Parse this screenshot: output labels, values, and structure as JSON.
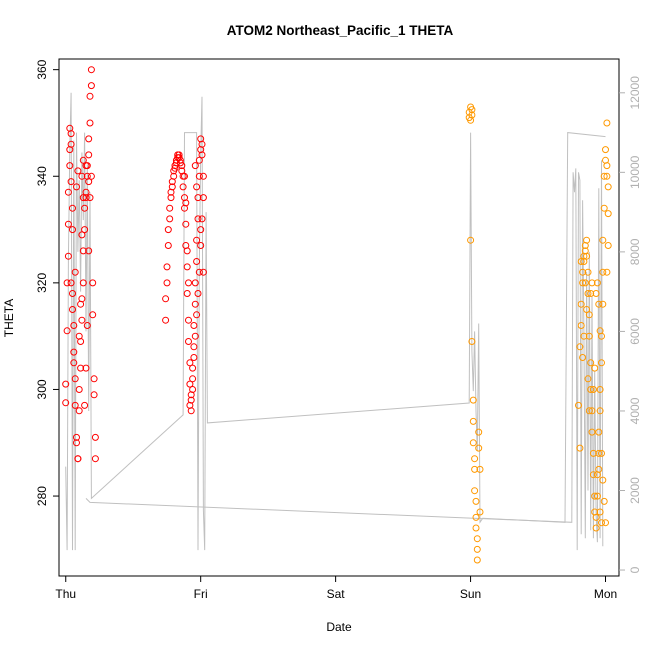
{
  "chart_data": {
    "type": "scatter",
    "title": "ATOM2 Northeast_Pacific_1 THETA",
    "xlabel": "Date",
    "ylabel": "THETA",
    "x_ticks": [
      "Thu",
      "Fri",
      "Sat",
      "Sun",
      "Mon"
    ],
    "x_range": [
      -0.05,
      4.1
    ],
    "ylim": [
      265,
      362
    ],
    "y_ticks": [
      280,
      300,
      320,
      340,
      360
    ],
    "y2lim": [
      -150,
      12850
    ],
    "y2_ticks": [
      0,
      2000,
      4000,
      6000,
      8000,
      10000,
      12000
    ],
    "colors": {
      "series1": "#ff0000",
      "series2": "#ff9900",
      "line": "#c0c0c0",
      "axis": "#000000",
      "right_axis": "#b0b0b0"
    },
    "series": [
      {
        "color": "#ff0000",
        "points": [
          [
            0.0,
            297.5
          ],
          [
            0.0,
            301
          ],
          [
            0.01,
            311
          ],
          [
            0.01,
            320
          ],
          [
            0.02,
            325
          ],
          [
            0.02,
            331
          ],
          [
            0.02,
            337
          ],
          [
            0.03,
            342
          ],
          [
            0.03,
            345
          ],
          [
            0.03,
            349
          ],
          [
            0.04,
            348
          ],
          [
            0.04,
            346
          ],
          [
            0.04,
            339
          ],
          [
            0.05,
            334
          ],
          [
            0.05,
            330
          ],
          [
            0.05,
            318
          ],
          [
            0.06,
            312
          ],
          [
            0.06,
            307
          ],
          [
            0.07,
            302
          ],
          [
            0.07,
            297
          ],
          [
            0.08,
            291
          ],
          [
            0.08,
            290
          ],
          [
            0.09,
            287
          ],
          [
            0.09,
            287
          ],
          [
            0.1,
            296
          ],
          [
            0.1,
            300
          ],
          [
            0.11,
            304
          ],
          [
            0.11,
            309
          ],
          [
            0.12,
            313
          ],
          [
            0.12,
            317
          ],
          [
            0.13,
            320
          ],
          [
            0.13,
            326
          ],
          [
            0.14,
            330
          ],
          [
            0.14,
            334
          ],
          [
            0.15,
            336
          ],
          [
            0.15,
            337
          ],
          [
            0.16,
            340
          ],
          [
            0.16,
            342
          ],
          [
            0.17,
            344
          ],
          [
            0.17,
            347
          ],
          [
            0.18,
            350
          ],
          [
            0.18,
            355
          ],
          [
            0.19,
            357
          ],
          [
            0.19,
            360
          ],
          [
            0.19,
            340
          ],
          [
            0.18,
            336
          ],
          [
            0.17,
            326
          ],
          [
            0.16,
            312
          ],
          [
            0.15,
            304
          ],
          [
            0.14,
            297
          ],
          [
            0.13,
            336
          ],
          [
            0.12,
            329
          ],
          [
            0.11,
            316
          ],
          [
            0.1,
            310
          ],
          [
            0.09,
            341
          ],
          [
            0.08,
            338
          ],
          [
            0.07,
            322
          ],
          [
            0.06,
            305
          ],
          [
            0.2,
            320
          ],
          [
            0.2,
            314
          ],
          [
            0.21,
            302
          ],
          [
            0.21,
            299
          ],
          [
            0.22,
            291
          ],
          [
            0.22,
            287
          ],
          [
            0.05,
            315
          ],
          [
            0.04,
            320
          ],
          [
            0.13,
            343
          ],
          [
            0.15,
            342
          ],
          [
            0.17,
            339
          ],
          [
            0.12,
            340
          ],
          [
            0.74,
            313
          ],
          [
            0.74,
            317
          ],
          [
            0.75,
            320
          ],
          [
            0.75,
            323
          ],
          [
            0.76,
            327
          ],
          [
            0.76,
            330
          ],
          [
            0.77,
            332
          ],
          [
            0.77,
            334
          ],
          [
            0.78,
            336
          ],
          [
            0.78,
            337
          ],
          [
            0.79,
            338
          ],
          [
            0.79,
            339
          ],
          [
            0.8,
            340
          ],
          [
            0.8,
            341
          ],
          [
            0.81,
            341.5
          ],
          [
            0.81,
            342
          ],
          [
            0.82,
            342.5
          ],
          [
            0.82,
            343
          ],
          [
            0.83,
            343.5
          ],
          [
            0.83,
            344
          ],
          [
            0.84,
            344
          ],
          [
            0.84,
            343.5
          ],
          [
            0.85,
            343
          ],
          [
            0.85,
            342.5
          ],
          [
            0.86,
            342
          ],
          [
            0.86,
            341
          ],
          [
            0.87,
            340
          ],
          [
            0.87,
            338
          ],
          [
            0.88,
            336
          ],
          [
            0.88,
            334
          ],
          [
            0.89,
            331
          ],
          [
            0.89,
            327
          ],
          [
            0.9,
            323
          ],
          [
            0.9,
            318
          ],
          [
            0.91,
            313
          ],
          [
            0.91,
            309
          ],
          [
            0.92,
            305
          ],
          [
            0.92,
            301
          ],
          [
            0.93,
            298
          ],
          [
            0.93,
            296
          ],
          [
            0.94,
            300
          ],
          [
            0.94,
            304
          ],
          [
            0.95,
            308
          ],
          [
            0.95,
            312
          ],
          [
            0.96,
            316
          ],
          [
            0.96,
            320
          ],
          [
            0.97,
            324
          ],
          [
            0.97,
            328
          ],
          [
            0.98,
            332
          ],
          [
            0.98,
            336
          ],
          [
            0.99,
            340
          ],
          [
            0.99,
            343
          ],
          [
            1.0,
            345
          ],
          [
            1.0,
            347
          ],
          [
            1.01,
            346
          ],
          [
            1.01,
            344
          ],
          [
            1.02,
            340
          ],
          [
            1.02,
            336
          ],
          [
            1.01,
            332
          ],
          [
            1.0,
            327
          ],
          [
            0.99,
            322
          ],
          [
            0.98,
            318
          ],
          [
            0.97,
            314
          ],
          [
            0.96,
            310
          ],
          [
            0.95,
            306
          ],
          [
            0.94,
            302
          ],
          [
            0.93,
            299
          ],
          [
            0.92,
            297
          ],
          [
            0.91,
            320
          ],
          [
            0.9,
            326
          ],
          [
            0.89,
            335
          ],
          [
            0.88,
            340
          ],
          [
            1.0,
            330
          ],
          [
            1.02,
            322
          ],
          [
            0.97,
            338
          ],
          [
            0.96,
            342
          ]
        ]
      },
      {
        "color": "#ff9900",
        "points": [
          [
            2.99,
            351
          ],
          [
            2.99,
            352
          ],
          [
            3.0,
            353
          ],
          [
            3.0,
            350.5
          ],
          [
            3.01,
            352.5
          ],
          [
            3.01,
            351.5
          ],
          [
            3.0,
            328
          ],
          [
            3.01,
            309
          ],
          [
            3.02,
            298
          ],
          [
            3.02,
            294
          ],
          [
            3.02,
            290
          ],
          [
            3.03,
            287
          ],
          [
            3.03,
            285
          ],
          [
            3.03,
            281
          ],
          [
            3.04,
            279
          ],
          [
            3.04,
            276
          ],
          [
            3.04,
            274
          ],
          [
            3.05,
            272
          ],
          [
            3.05,
            270
          ],
          [
            3.05,
            268
          ],
          [
            3.06,
            292
          ],
          [
            3.06,
            289
          ],
          [
            3.07,
            285
          ],
          [
            3.07,
            277
          ],
          [
            3.8,
            297
          ],
          [
            3.81,
            289
          ],
          [
            3.81,
            308
          ],
          [
            3.82,
            312
          ],
          [
            3.82,
            316
          ],
          [
            3.83,
            320
          ],
          [
            3.83,
            322
          ],
          [
            3.84,
            324
          ],
          [
            3.84,
            325
          ],
          [
            3.85,
            326
          ],
          [
            3.85,
            327
          ],
          [
            3.86,
            328
          ],
          [
            3.86,
            325
          ],
          [
            3.87,
            322
          ],
          [
            3.87,
            318
          ],
          [
            3.88,
            314
          ],
          [
            3.88,
            310
          ],
          [
            3.89,
            305
          ],
          [
            3.89,
            300
          ],
          [
            3.9,
            296
          ],
          [
            3.9,
            292
          ],
          [
            3.91,
            288
          ],
          [
            3.91,
            284
          ],
          [
            3.92,
            280
          ],
          [
            3.92,
            277
          ],
          [
            3.93,
            274
          ],
          [
            3.93,
            276
          ],
          [
            3.94,
            280
          ],
          [
            3.94,
            284
          ],
          [
            3.95,
            288
          ],
          [
            3.95,
            292
          ],
          [
            3.96,
            296
          ],
          [
            3.96,
            300
          ],
          [
            3.97,
            305
          ],
          [
            3.97,
            310
          ],
          [
            3.98,
            316
          ],
          [
            3.98,
            322
          ],
          [
            3.98,
            328
          ],
          [
            3.99,
            334
          ],
          [
            3.99,
            340
          ],
          [
            4.0,
            343
          ],
          [
            4.0,
            345
          ],
          [
            4.01,
            342
          ],
          [
            4.01,
            340
          ],
          [
            4.02,
            338
          ],
          [
            4.02,
            333
          ],
          [
            4.02,
            327
          ],
          [
            4.01,
            322
          ],
          [
            4.01,
            350
          ],
          [
            4.0,
            275
          ],
          [
            3.99,
            279
          ],
          [
            3.98,
            283
          ],
          [
            3.97,
            288
          ],
          [
            3.96,
            311
          ],
          [
            3.95,
            316
          ],
          [
            3.94,
            320
          ],
          [
            3.93,
            318
          ],
          [
            3.92,
            304
          ],
          [
            3.91,
            300
          ],
          [
            3.9,
            320
          ],
          [
            3.89,
            318
          ],
          [
            3.88,
            296
          ],
          [
            3.87,
            302
          ],
          [
            3.86,
            315
          ],
          [
            3.85,
            320
          ],
          [
            3.84,
            310
          ],
          [
            3.83,
            306
          ],
          [
            3.82,
            324
          ],
          [
            3.97,
            275
          ],
          [
            3.96,
            277
          ],
          [
            3.95,
            285
          ]
        ]
      }
    ],
    "line": {
      "color": "#c0c0c0",
      "points": [
        [
          0.0,
          2600
        ],
        [
          0.01,
          500
        ],
        [
          0.02,
          7800
        ],
        [
          0.03,
          10600
        ],
        [
          0.04,
          12000
        ],
        [
          0.05,
          500
        ],
        [
          0.06,
          10800
        ],
        [
          0.07,
          500
        ],
        [
          0.08,
          11000
        ],
        [
          0.09,
          8000
        ],
        [
          0.1,
          9800
        ],
        [
          0.11,
          7000
        ],
        [
          0.12,
          10500
        ],
        [
          0.13,
          8800
        ],
        [
          0.14,
          11000
        ],
        [
          0.15,
          6000
        ],
        [
          0.16,
          10200
        ],
        [
          0.17,
          4000
        ],
        [
          0.18,
          9500
        ],
        [
          0.19,
          1800
        ],
        [
          0.87,
          3900
        ],
        [
          0.88,
          11000
        ],
        [
          0.97,
          11000
        ],
        [
          0.98,
          500
        ],
        [
          0.99,
          7600
        ],
        [
          1.0,
          10500
        ],
        [
          1.01,
          11900
        ],
        [
          1.02,
          1500
        ],
        [
          1.03,
          500
        ],
        [
          1.04,
          9000
        ],
        [
          1.05,
          3700
        ],
        [
          2.99,
          4200
        ],
        [
          3.0,
          11000
        ],
        [
          3.01,
          5500
        ],
        [
          3.02,
          4500
        ],
        [
          3.03,
          6000
        ],
        [
          3.04,
          4000
        ],
        [
          3.05,
          3000
        ],
        [
          3.06,
          6200
        ],
        [
          3.07,
          1200
        ],
        [
          3.09,
          1300
        ],
        [
          3.7,
          1200
        ],
        [
          3.72,
          11000
        ],
        [
          4.0,
          10900
        ]
      ]
    },
    "line2": {
      "color": "#c0c0c0",
      "points": [
        [
          0.15,
          1800
        ],
        [
          0.18,
          1700
        ],
        [
          3.75,
          1200
        ],
        [
          3.76,
          10000
        ],
        [
          3.77,
          9500
        ],
        [
          3.78,
          10100
        ],
        [
          3.79,
          500
        ],
        [
          3.8,
          10000
        ],
        [
          3.81,
          9800
        ],
        [
          3.82,
          900
        ],
        [
          3.83,
          9300
        ],
        [
          3.84,
          6000
        ],
        [
          3.85,
          800
        ],
        [
          3.86,
          7500
        ],
        [
          3.87,
          2000
        ],
        [
          3.88,
          8000
        ],
        [
          3.89,
          1000
        ],
        [
          3.9,
          6900
        ],
        [
          3.91,
          800
        ],
        [
          3.92,
          5000
        ],
        [
          3.93,
          1400
        ],
        [
          3.94,
          700
        ],
        [
          3.95,
          9600
        ],
        [
          3.96,
          800
        ],
        [
          3.97,
          10300
        ],
        [
          3.98,
          600
        ]
      ]
    }
  }
}
